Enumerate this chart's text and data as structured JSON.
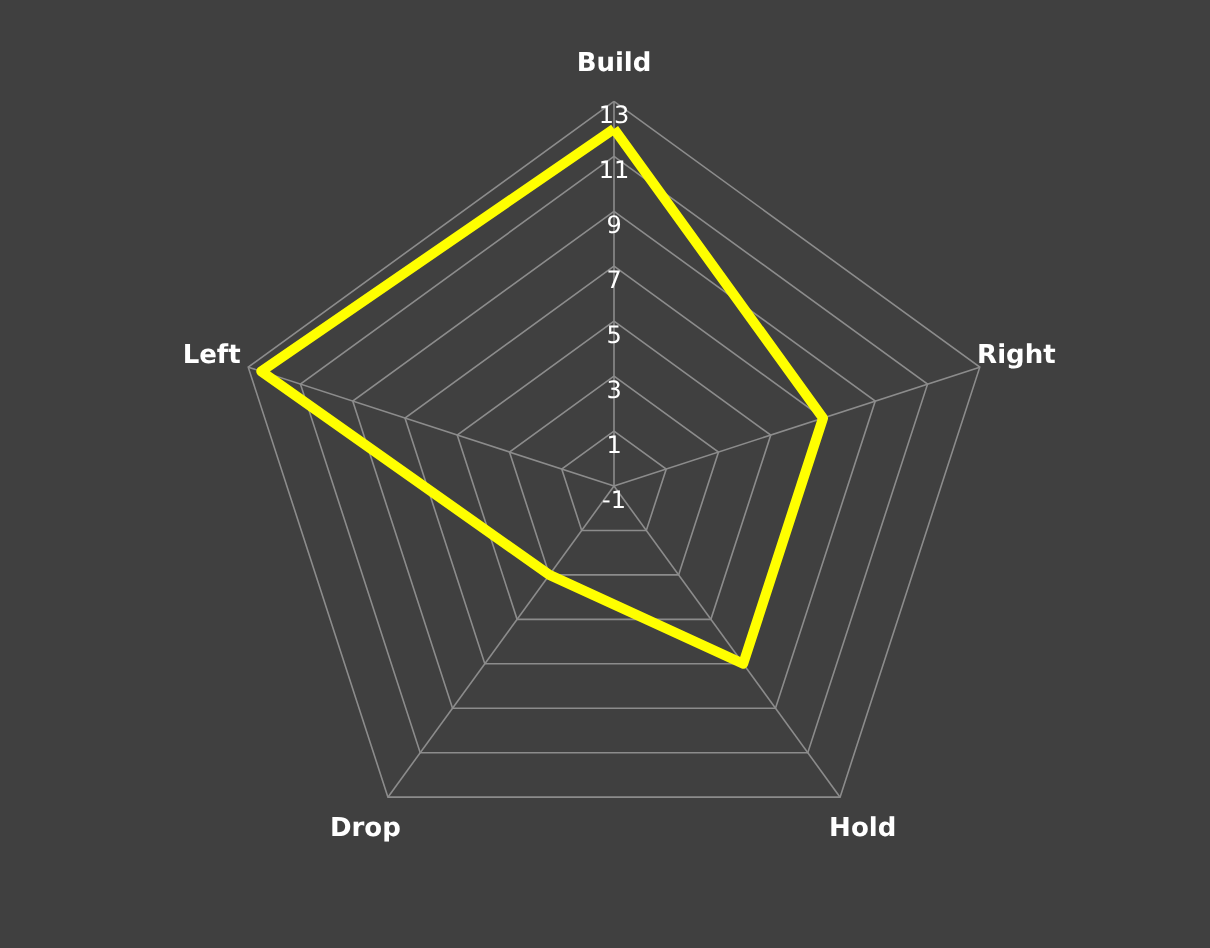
{
  "chart_data": {
    "type": "radar",
    "categories": [
      "Build",
      "Right",
      "Hold",
      "Drop",
      "Left"
    ],
    "series": [
      {
        "color": "#ffff00",
        "values": [
          12,
          7,
          7,
          3,
          12.5
        ]
      }
    ],
    "ylim": [
      -1,
      13
    ],
    "yticks": [
      -1,
      1,
      3,
      5,
      7,
      9,
      11,
      13
    ],
    "grid": true
  }
}
